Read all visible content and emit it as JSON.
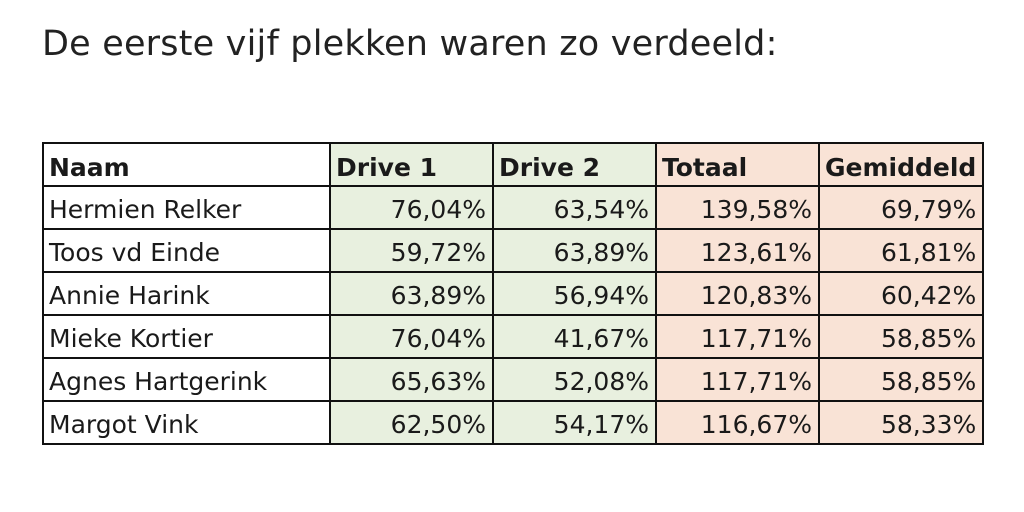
{
  "heading": "De eerste vijf plekken waren zo verdeeld:",
  "table": {
    "headers": {
      "name": "Naam",
      "drive1": "Drive 1",
      "drive2": "Drive 2",
      "total": "Totaal",
      "average": "Gemiddeld"
    },
    "rows": [
      {
        "name": "Hermien Relker",
        "drive1": "76,04%",
        "drive2": "63,54%",
        "total": "139,58%",
        "average": "69,79%"
      },
      {
        "name": "Toos vd Einde",
        "drive1": "59,72%",
        "drive2": "63,89%",
        "total": "123,61%",
        "average": "61,81%"
      },
      {
        "name": "Annie Harink",
        "drive1": "63,89%",
        "drive2": "56,94%",
        "total": "120,83%",
        "average": "60,42%"
      },
      {
        "name": "Mieke Kortier",
        "drive1": "76,04%",
        "drive2": "41,67%",
        "total": "117,71%",
        "average": "58,85%"
      },
      {
        "name": "Agnes Hartgerink",
        "drive1": "65,63%",
        "drive2": "52,08%",
        "total": "117,71%",
        "average": "58,85%"
      },
      {
        "name": "Margot Vink",
        "drive1": "62,50%",
        "drive2": "54,17%",
        "total": "116,67%",
        "average": "58,33%"
      }
    ]
  },
  "colors": {
    "drive_columns": "#e8f0df",
    "result_columns": "#f9e3d6",
    "border": "#111111"
  }
}
